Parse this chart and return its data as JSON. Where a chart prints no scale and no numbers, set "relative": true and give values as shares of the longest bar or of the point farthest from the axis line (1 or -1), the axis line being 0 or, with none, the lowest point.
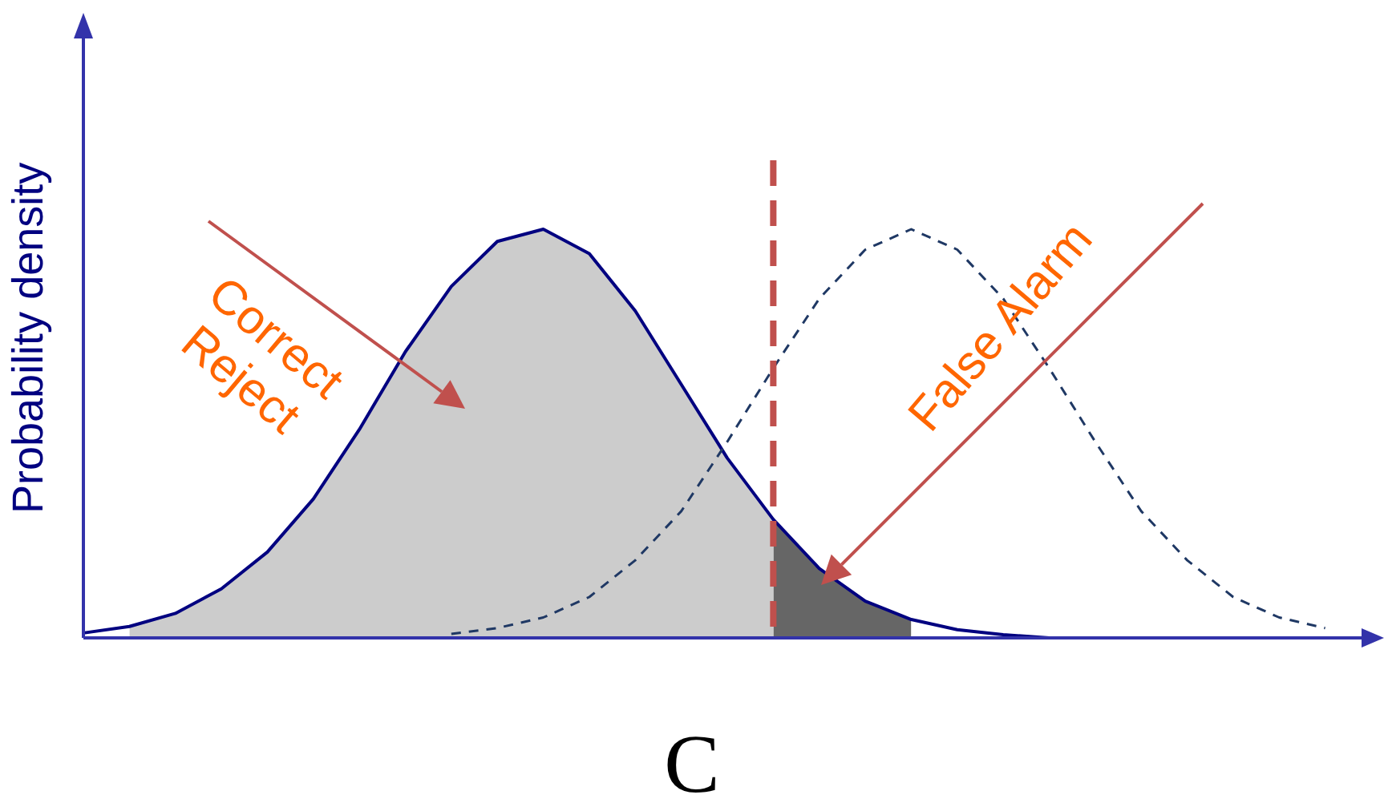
{
  "chart_data": {
    "type": "area",
    "relative": true,
    "xlabel": "C",
    "ylabel": "Probability density",
    "categories": [
      null,
      null,
      null,
      null,
      null,
      null,
      null,
      null,
      null,
      null,
      null,
      null,
      null,
      null,
      null,
      null,
      null,
      null,
      null,
      null,
      null,
      null,
      null,
      null,
      null,
      null,
      null,
      null,
      null
    ],
    "series": [
      {
        "color": "#cccccc",
        "values": [
          null,
          0.028,
          0.06,
          0.12,
          0.21,
          0.34,
          0.51,
          0.7,
          0.86,
          0.97,
          1.0,
          0.94,
          0.8,
          0.62,
          0.44,
          0.29,
          null,
          null,
          null,
          null,
          null,
          null,
          null,
          null,
          null,
          null,
          null,
          null,
          null
        ]
      },
      {
        "color": "#666666",
        "values": [
          null,
          null,
          null,
          null,
          null,
          null,
          null,
          null,
          null,
          null,
          null,
          null,
          null,
          null,
          null,
          0.29,
          0.17,
          0.09,
          0.045,
          null,
          null,
          null,
          null,
          null,
          null,
          null,
          null,
          null,
          null
        ]
      },
      {
        "type": "line",
        "color": "#000080",
        "line_style": "solid",
        "values": [
          0.012,
          0.028,
          0.06,
          0.12,
          0.21,
          0.34,
          0.51,
          0.7,
          0.86,
          0.97,
          1.0,
          0.94,
          0.8,
          0.62,
          0.44,
          0.29,
          0.17,
          0.09,
          0.045,
          0.02,
          0.008,
          0,
          null,
          null,
          null,
          null,
          null,
          null,
          null
        ]
      },
      {
        "type": "line",
        "color": "#1f3864",
        "line_style": "dashed",
        "values": [
          null,
          null,
          null,
          null,
          null,
          null,
          null,
          null,
          0.01,
          0.024,
          0.05,
          0.1,
          0.19,
          0.31,
          0.48,
          0.66,
          0.83,
          0.95,
          1.0,
          0.95,
          0.83,
          0.66,
          0.48,
          0.31,
          0.19,
          0.1,
          0.05,
          0.024,
          null
        ]
      }
    ],
    "annotations": [
      "Correct Reject",
      "False Alarm"
    ]
  }
}
